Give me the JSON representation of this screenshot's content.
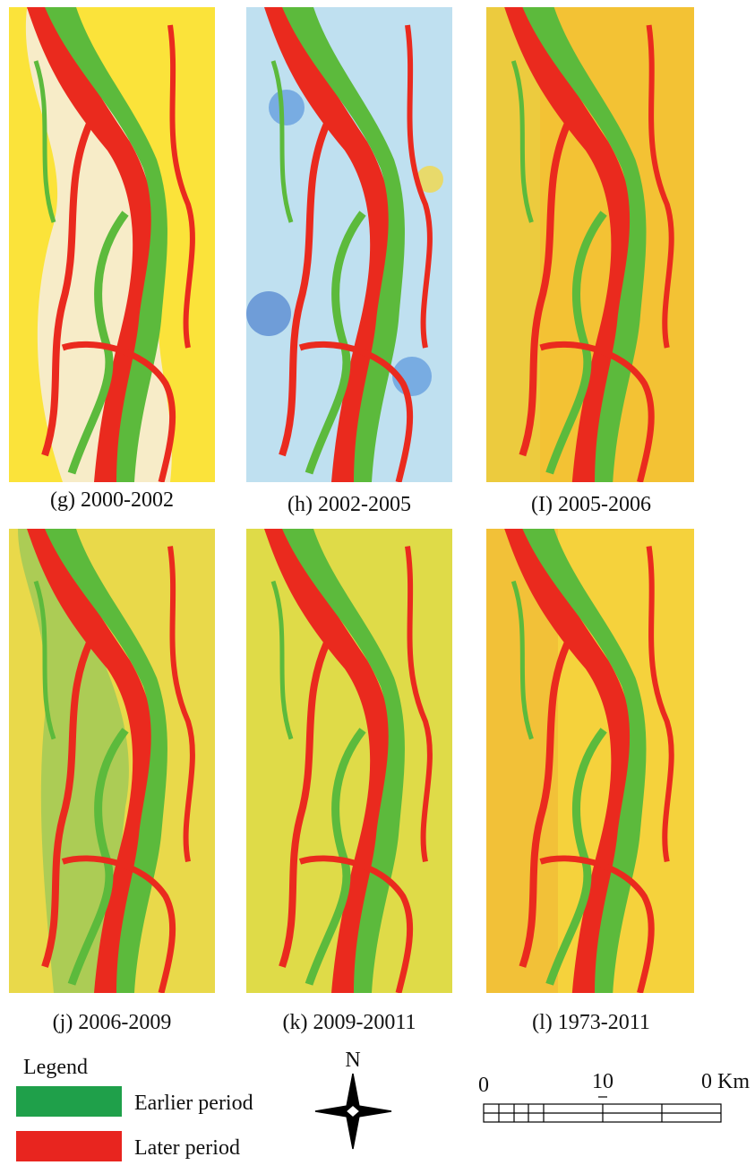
{
  "panels": [
    {
      "caption": "(g) 2000-2002"
    },
    {
      "caption": "(h) 2002-2005"
    },
    {
      "caption": "(I) 2005-2006"
    },
    {
      "caption": "(j) 2006-2009"
    },
    {
      "caption": "(k) 2009-20011"
    },
    {
      "caption": "(l) 1973-2011"
    }
  ],
  "legend": {
    "title": "Legend",
    "items": [
      {
        "label": "Earlier period"
      },
      {
        "label": "Later period"
      }
    ]
  },
  "north": "N",
  "scale": {
    "labels": [
      "0",
      "10",
      "0 Km"
    ]
  }
}
